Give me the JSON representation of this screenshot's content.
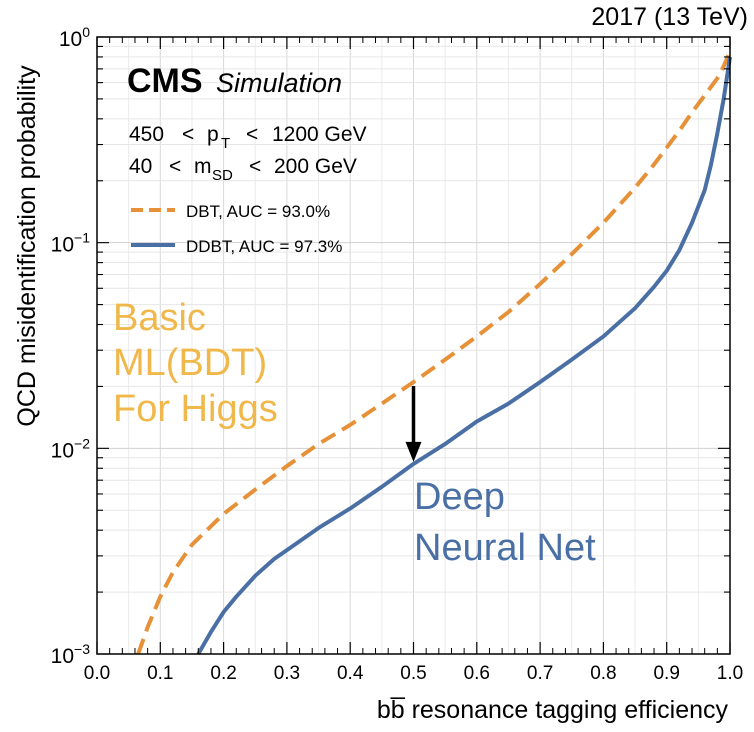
{
  "chart_data": {
    "type": "line",
    "title": "",
    "header_right": "2017 (13 TeV)",
    "experiment": "CMS",
    "experiment_tag": "Simulation",
    "xlabel": "bb̅ resonance tagging efficiency",
    "ylabel": "QCD misidentification probability",
    "xlim": [
      0.0,
      1.0
    ],
    "ylim": [
      0.001,
      1.0
    ],
    "yscale": "log",
    "grid": true,
    "x_ticks": [
      "0.0",
      "0.1",
      "0.2",
      "0.3",
      "0.4",
      "0.5",
      "0.6",
      "0.7",
      "0.8",
      "0.9",
      "1.0"
    ],
    "y_ticks": [
      {
        "value": 0.001,
        "base": "10",
        "exp": "−3"
      },
      {
        "value": 0.01,
        "base": "10",
        "exp": "−2"
      },
      {
        "value": 0.1,
        "base": "10",
        "exp": "−1"
      },
      {
        "value": 1.0,
        "base": "10",
        "exp": "0"
      }
    ],
    "cuts": {
      "pt": {
        "low": "450",
        "lt1": "<",
        "var": "p",
        "sub": "T",
        "lt2": "<",
        "high": "1200 GeV"
      },
      "msd": {
        "low": "40",
        "lt1": "<",
        "var": "m",
        "sub": "SD",
        "lt2": "<",
        "high": "200 GeV"
      }
    },
    "legend_position": "upper-left",
    "series": [
      {
        "name": "DBT, AUC = 93.0%",
        "color": "#e69138",
        "style": "dashed",
        "points": [
          [
            0.065,
            0.001
          ],
          [
            0.08,
            0.00135
          ],
          [
            0.1,
            0.0019
          ],
          [
            0.12,
            0.0025
          ],
          [
            0.15,
            0.0034
          ],
          [
            0.2,
            0.0048
          ],
          [
            0.25,
            0.0063
          ],
          [
            0.3,
            0.0082
          ],
          [
            0.35,
            0.0105
          ],
          [
            0.4,
            0.013
          ],
          [
            0.45,
            0.0165
          ],
          [
            0.5,
            0.021
          ],
          [
            0.55,
            0.027
          ],
          [
            0.6,
            0.035
          ],
          [
            0.65,
            0.046
          ],
          [
            0.7,
            0.063
          ],
          [
            0.75,
            0.088
          ],
          [
            0.8,
            0.125
          ],
          [
            0.85,
            0.185
          ],
          [
            0.88,
            0.24
          ],
          [
            0.9,
            0.29
          ],
          [
            0.92,
            0.35
          ],
          [
            0.94,
            0.43
          ],
          [
            0.96,
            0.52
          ],
          [
            0.98,
            0.63
          ],
          [
            0.99,
            0.72
          ],
          [
            1.0,
            0.85
          ]
        ]
      },
      {
        "name": "DDBT, AUC = 97.3%",
        "color": "#4a6fa5",
        "style": "solid",
        "points": [
          [
            0.16,
            0.001
          ],
          [
            0.18,
            0.00128
          ],
          [
            0.2,
            0.0016
          ],
          [
            0.22,
            0.0019
          ],
          [
            0.25,
            0.0024
          ],
          [
            0.28,
            0.0029
          ],
          [
            0.3,
            0.0032
          ],
          [
            0.35,
            0.0041
          ],
          [
            0.4,
            0.0051
          ],
          [
            0.45,
            0.0065
          ],
          [
            0.5,
            0.0084
          ],
          [
            0.55,
            0.0105
          ],
          [
            0.6,
            0.0135
          ],
          [
            0.65,
            0.0165
          ],
          [
            0.7,
            0.021
          ],
          [
            0.75,
            0.027
          ],
          [
            0.8,
            0.035
          ],
          [
            0.85,
            0.048
          ],
          [
            0.88,
            0.061
          ],
          [
            0.9,
            0.073
          ],
          [
            0.92,
            0.092
          ],
          [
            0.94,
            0.125
          ],
          [
            0.96,
            0.18
          ],
          [
            0.97,
            0.24
          ],
          [
            0.98,
            0.34
          ],
          [
            0.99,
            0.5
          ],
          [
            1.0,
            0.8
          ]
        ]
      }
    ],
    "annotations": {
      "basic_lines": [
        "Basic",
        "ML(BDT)",
        "For Higgs"
      ],
      "basic_color": "#f0b84a",
      "deep_lines": [
        "Deep",
        "Neural Net"
      ],
      "deep_color": "#4a6fa5",
      "arrow": {
        "x": 0.5,
        "y_from": 0.021,
        "y_to": 0.0084,
        "color": "#000000"
      }
    }
  }
}
